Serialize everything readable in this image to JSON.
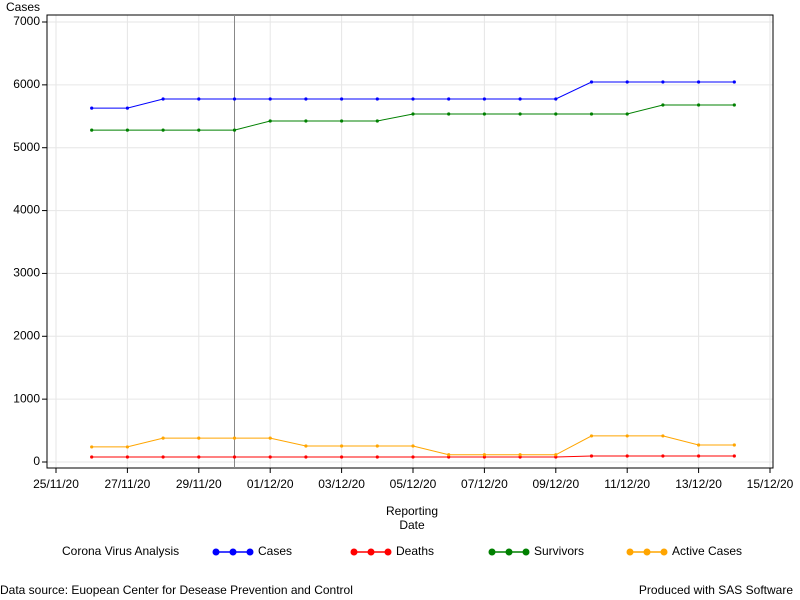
{
  "chart_data": {
    "type": "line",
    "y_label": "Cases",
    "x_label": [
      "Reporting",
      "Date"
    ],
    "x": [
      "26/11/20",
      "27/11/20",
      "28/11/20",
      "29/11/20",
      "30/11/20",
      "01/12/20",
      "02/12/20",
      "03/12/20",
      "04/12/20",
      "05/12/20",
      "06/12/20",
      "07/12/20",
      "08/12/20",
      "09/12/20",
      "10/12/20",
      "11/12/20",
      "12/12/20",
      "13/12/20",
      "14/12/20"
    ],
    "series": [
      {
        "name": "Cases",
        "color": "#0000ff",
        "values": [
          5630,
          5630,
          5775,
          5775,
          5775,
          5775,
          5775,
          5775,
          5775,
          5775,
          5775,
          5775,
          5775,
          5775,
          6045,
          6045,
          6045,
          6045,
          6045
        ]
      },
      {
        "name": "Deaths",
        "color": "#ff0000",
        "values": [
          80,
          80,
          80,
          80,
          80,
          80,
          80,
          80,
          80,
          80,
          80,
          80,
          80,
          80,
          95,
          95,
          95,
          95,
          95
        ]
      },
      {
        "name": "Survivors",
        "color": "#008000",
        "values": [
          5280,
          5280,
          5280,
          5280,
          5280,
          5425,
          5425,
          5425,
          5425,
          5536,
          5536,
          5536,
          5536,
          5536,
          5536,
          5536,
          5680,
          5680,
          5680
        ]
      },
      {
        "name": "Active Cases",
        "color": "#ffa500",
        "values": [
          240,
          240,
          380,
          380,
          380,
          380,
          255,
          255,
          255,
          255,
          115,
          115,
          115,
          115,
          415,
          415,
          415,
          270,
          270
        ]
      }
    ],
    "xlim": [
      "25/11/20",
      "15/12/20"
    ],
    "xticks": [
      "25/11/20",
      "27/11/20",
      "29/11/20",
      "01/12/20",
      "03/12/20",
      "05/12/20",
      "07/12/20",
      "09/12/20",
      "11/12/20",
      "13/12/20",
      "15/12/20"
    ],
    "ylim": [
      0,
      7000
    ],
    "yticks": [
      0,
      1000,
      2000,
      3000,
      4000,
      5000,
      6000,
      7000
    ],
    "grid": true,
    "reference_line_x": "30/11/20",
    "legend_title": "Corona Virus Analysis",
    "legend_position": "bottom",
    "footnote_left": "Data source: Euopean Center for Desease Prevention and Control",
    "footnote_right": "Produced with SAS Software"
  }
}
